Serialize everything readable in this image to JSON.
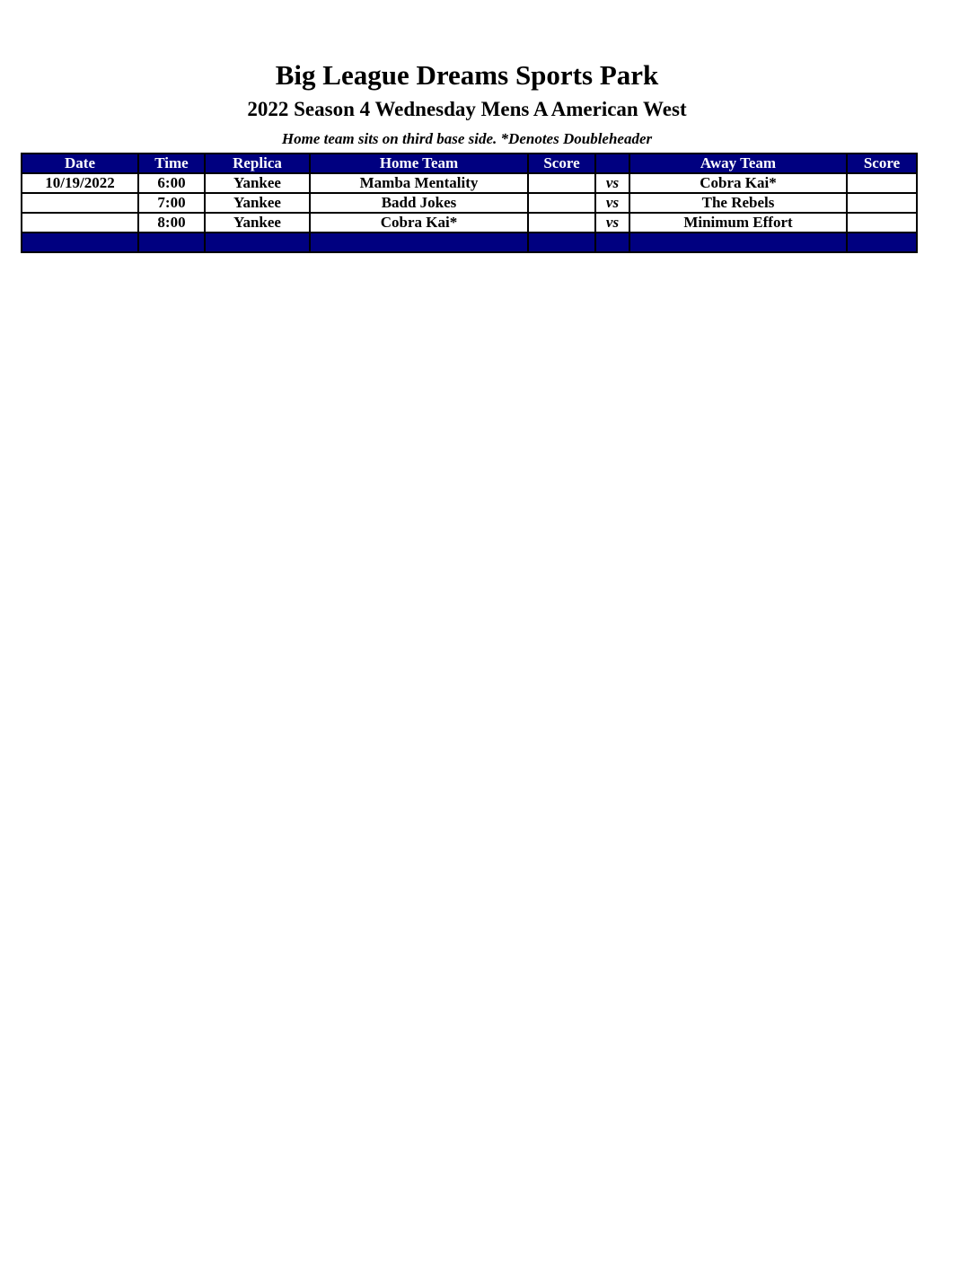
{
  "title": "Big League Dreams Sports Park",
  "subtitle": "2022 Season 4 Wednesday Mens A American West",
  "note": "Home team sits on third base side.  *Denotes Doubleheader",
  "colors": {
    "header_bg": "#000080",
    "header_text": "#ffffff"
  },
  "columns": [
    "Date",
    "Time",
    "Replica",
    "Home Team",
    "Score",
    "",
    "Away Team",
    "Score"
  ],
  "rows": [
    {
      "date": "10/19/2022",
      "time": "6:00",
      "replica": "Yankee",
      "home": "Mamba Mentality",
      "home_score": "",
      "vs": "vs",
      "away": "Cobra Kai*",
      "away_score": ""
    },
    {
      "date": "",
      "time": "7:00",
      "replica": "Yankee",
      "home": "Badd Jokes",
      "home_score": "",
      "vs": "vs",
      "away": "The Rebels",
      "away_score": ""
    },
    {
      "date": "",
      "time": "8:00",
      "replica": "Yankee",
      "home": "Cobra Kai*",
      "home_score": "",
      "vs": "vs",
      "away": "Minimum Effort",
      "away_score": ""
    }
  ]
}
